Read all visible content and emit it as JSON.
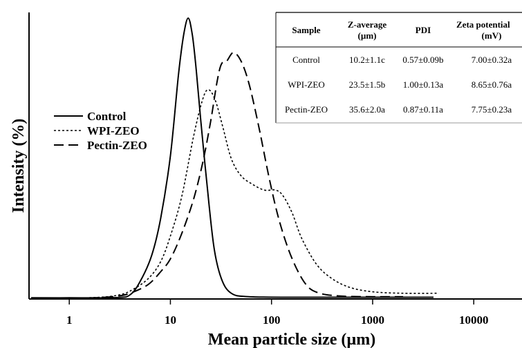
{
  "chart_data": {
    "type": "line",
    "title": "",
    "xlabel": "Mean particle size (µm)",
    "ylabel": "Intensity (%)",
    "xscale": "log",
    "xlim": [
      0.4,
      30000
    ],
    "ylim": [
      0,
      100
    ],
    "xticks": [
      1,
      10,
      100,
      1000,
      10000
    ],
    "xtick_labels": [
      "1",
      "10",
      "100",
      "1000",
      "10000"
    ],
    "grid": false,
    "legend": {
      "placement": "center-left"
    },
    "series": [
      {
        "name": "Control",
        "dash": "solid",
        "points": [
          [
            0.42,
            0.4
          ],
          [
            1,
            0.4
          ],
          [
            3,
            0.5
          ],
          [
            4,
            1.5
          ],
          [
            5,
            6
          ],
          [
            6.5,
            15
          ],
          [
            8,
            28
          ],
          [
            10,
            50
          ],
          [
            12,
            78
          ],
          [
            13.5,
            92
          ],
          [
            15,
            98
          ],
          [
            16.5,
            92
          ],
          [
            18,
            80
          ],
          [
            20,
            62
          ],
          [
            23,
            40
          ],
          [
            27,
            18
          ],
          [
            32,
            7
          ],
          [
            40,
            2
          ],
          [
            60,
            0.8
          ],
          [
            200,
            0.6
          ],
          [
            1000,
            0.6
          ],
          [
            4000,
            0.6
          ]
        ]
      },
      {
        "name": "WPI-ZEO",
        "dash": "dotted",
        "points": [
          [
            0.42,
            0.3
          ],
          [
            1,
            0.3
          ],
          [
            2,
            0.6
          ],
          [
            3,
            1.3
          ],
          [
            4,
            2.8
          ],
          [
            6,
            7
          ],
          [
            8,
            13
          ],
          [
            10,
            22
          ],
          [
            13,
            36
          ],
          [
            17,
            57
          ],
          [
            21,
            70
          ],
          [
            24,
            73
          ],
          [
            28,
            69
          ],
          [
            33,
            60
          ],
          [
            40,
            49
          ],
          [
            50,
            43
          ],
          [
            65,
            40
          ],
          [
            85,
            38
          ],
          [
            110,
            38
          ],
          [
            130,
            36
          ],
          [
            160,
            30
          ],
          [
            200,
            21
          ],
          [
            280,
            12
          ],
          [
            400,
            7
          ],
          [
            600,
            4
          ],
          [
            1000,
            2.5
          ],
          [
            2000,
            2
          ],
          [
            4500,
            2
          ]
        ]
      },
      {
        "name": "Pectin-ZEO",
        "dash": "dashed",
        "points": [
          [
            0.42,
            0.3
          ],
          [
            1,
            0.3
          ],
          [
            2,
            0.5
          ],
          [
            3,
            1
          ],
          [
            4,
            2
          ],
          [
            6,
            5
          ],
          [
            8,
            9.5
          ],
          [
            10,
            14
          ],
          [
            13,
            23
          ],
          [
            17,
            35
          ],
          [
            21,
            48
          ],
          [
            25,
            62
          ],
          [
            29,
            76
          ],
          [
            32,
            82
          ],
          [
            36,
            83
          ],
          [
            42,
            86
          ],
          [
            50,
            83
          ],
          [
            60,
            75
          ],
          [
            75,
            60
          ],
          [
            95,
            42
          ],
          [
            120,
            27
          ],
          [
            160,
            14
          ],
          [
            220,
            5
          ],
          [
            300,
            2
          ],
          [
            500,
            1
          ],
          [
            1000,
            0.8
          ],
          [
            2000,
            0.8
          ]
        ]
      }
    ],
    "table": {
      "headers": [
        "Sample",
        "Z-average (µm)",
        "PDI",
        "Zeta potential (mV)"
      ],
      "rows": [
        [
          "Control",
          "10.2±1.1c",
          "0.57±0.09b",
          "7.00±0.32a"
        ],
        [
          "WPI-ZEO",
          "23.5±1.5b",
          "1.00±0.13a",
          "8.65±0.76a"
        ],
        [
          "Pectin-ZEO",
          "35.6±2.0a",
          "0.87±0.11a",
          "7.75±0.23a"
        ]
      ]
    }
  },
  "text": {
    "ylabel": "Intensity (%)",
    "xlabel": "Mean particle size (µm)",
    "legend": [
      "Control",
      "WPI-ZEO",
      "Pectin-ZEO"
    ],
    "table_head": {
      "sample": "Sample",
      "zavg_1": "Z-average",
      "zavg_2": "(µm)",
      "pdi": "PDI",
      "zeta_1": "Zeta potential",
      "zeta_2": "(mV)"
    }
  }
}
